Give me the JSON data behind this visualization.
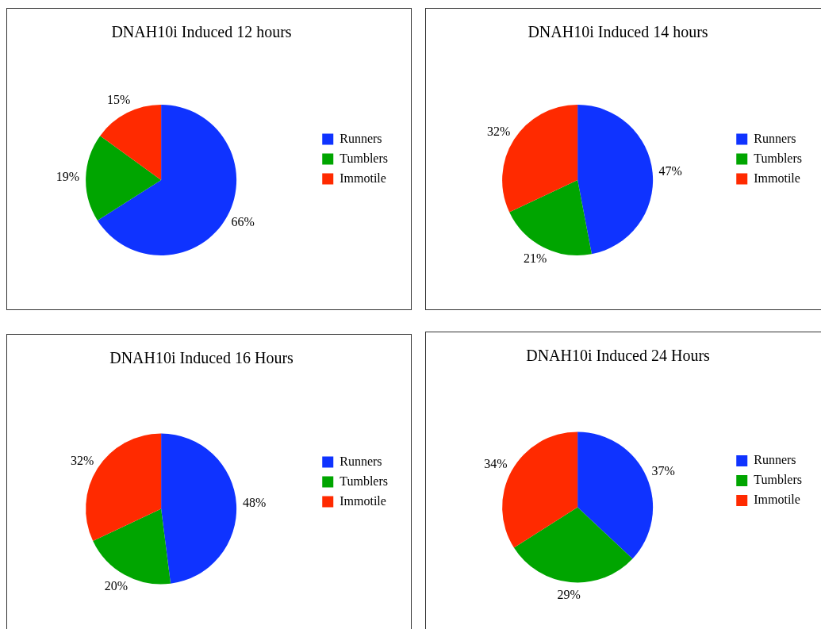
{
  "chart_data": [
    {
      "type": "pie",
      "title": "DNAH10i Induced 12 hours",
      "categories": [
        "Runners",
        "Tumblers",
        "Immotile"
      ],
      "values": [
        66,
        19,
        15
      ],
      "colors": [
        "#0f33ff",
        "#00a500",
        "#ff2a00"
      ],
      "value_labels": [
        "66%",
        "19%",
        "15%"
      ],
      "legend": "right"
    },
    {
      "type": "pie",
      "title": "DNAH10i Induced 14 hours",
      "categories": [
        "Runners",
        "Tumblers",
        "Immotile"
      ],
      "values": [
        47,
        21,
        32
      ],
      "colors": [
        "#0f33ff",
        "#00a500",
        "#ff2a00"
      ],
      "value_labels": [
        "47%",
        "21%",
        "32%"
      ],
      "legend": "right"
    },
    {
      "type": "pie",
      "title": "DNAH10i Induced 16 Hours",
      "categories": [
        "Runners",
        "Tumblers",
        "Immotile"
      ],
      "values": [
        48,
        20,
        32
      ],
      "colors": [
        "#0f33ff",
        "#00a500",
        "#ff2a00"
      ],
      "value_labels": [
        "48%",
        "20%",
        "32%"
      ],
      "legend": "right"
    },
    {
      "type": "pie",
      "title": "DNAH10i Induced 24 Hours",
      "categories": [
        "Runners",
        "Tumblers",
        "Immotile"
      ],
      "values": [
        37,
        29,
        34
      ],
      "colors": [
        "#0f33ff",
        "#00a500",
        "#ff2a00"
      ],
      "value_labels": [
        "37%",
        "29%",
        "34%"
      ],
      "legend": "right"
    }
  ]
}
